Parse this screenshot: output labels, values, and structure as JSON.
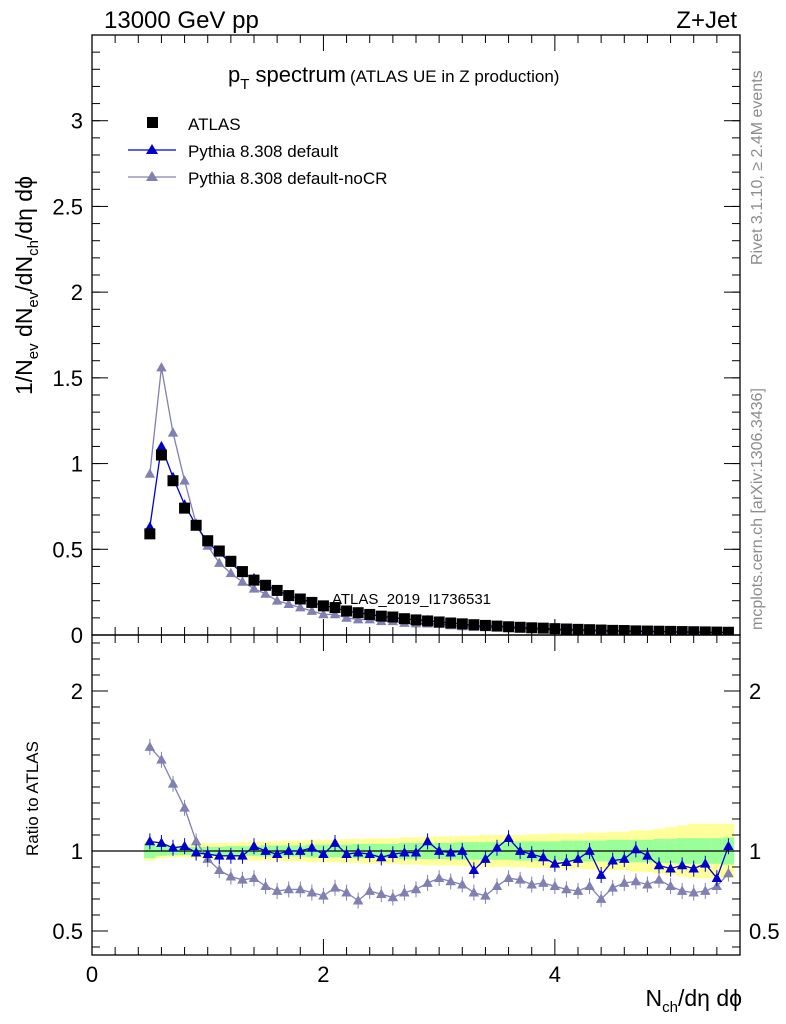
{
  "header": {
    "left": "13000 GeV pp",
    "right": "Z+Jet"
  },
  "plot_title": {
    "main": "p",
    "main_sub": "T",
    "main_rest": " spectrum",
    "suffix": "(ATLAS UE in Z production)"
  },
  "side_labels": {
    "rivet": "Rivet 3.1.10, ≥ 2.4M events",
    "mcplots": "mcplots.cern.ch [arXiv:1306.3436]"
  },
  "analysis_label": "ATLAS_2019_I1736531",
  "y_label_main": {
    "p1": "1/N",
    "s1": "ev",
    "p2": " dN",
    "s2": "ev",
    "p3": "/dN",
    "s3": "ch",
    "p4": "/dη dϕ"
  },
  "y_label_ratio": "Ratio to ATLAS",
  "x_label": {
    "p1": "N",
    "s1": "ch",
    "p2": "/dη dϕ"
  },
  "colors": {
    "data": "#000000",
    "pythia_default": "#0000cc",
    "pythia_nocr": "#8080b3",
    "band_inner": "#99ff99",
    "band_outer": "#ffff99"
  },
  "chart_data": [
    {
      "type": "scatter",
      "panel": "main",
      "xlim": [
        0,
        5.6
      ],
      "ylim": [
        0,
        3.5
      ],
      "x_ticks": [
        0,
        2,
        4
      ],
      "y_ticks": [
        0,
        0.5,
        1,
        1.5,
        2,
        2.5,
        3
      ],
      "y_tick_labels": [
        "0",
        "0.5",
        "1",
        "1.5",
        "2",
        "2.5",
        "3"
      ],
      "x": [
        0.5,
        0.6,
        0.7,
        0.8,
        0.9,
        1.0,
        1.1,
        1.2,
        1.3,
        1.4,
        1.5,
        1.6,
        1.7,
        1.8,
        1.9,
        2.0,
        2.1,
        2.2,
        2.3,
        2.4,
        2.5,
        2.6,
        2.7,
        2.8,
        2.9,
        3.0,
        3.1,
        3.2,
        3.3,
        3.4,
        3.5,
        3.6,
        3.7,
        3.8,
        3.9,
        4.0,
        4.1,
        4.2,
        4.3,
        4.4,
        4.5,
        4.6,
        4.7,
        4.8,
        4.9,
        5.0,
        5.1,
        5.2,
        5.3,
        5.4,
        5.5
      ],
      "series": [
        {
          "name": "ATLAS",
          "marker": "square",
          "values": [
            0.59,
            1.05,
            0.9,
            0.74,
            0.64,
            0.55,
            0.49,
            0.43,
            0.37,
            0.32,
            0.29,
            0.26,
            0.23,
            0.21,
            0.19,
            0.17,
            0.16,
            0.14,
            0.13,
            0.12,
            0.11,
            0.105,
            0.095,
            0.088,
            0.082,
            0.076,
            0.07,
            0.065,
            0.06,
            0.056,
            0.052,
            0.048,
            0.045,
            0.042,
            0.04,
            0.037,
            0.035,
            0.033,
            0.031,
            0.029,
            0.027,
            0.026,
            0.024,
            0.023,
            0.022,
            0.021,
            0.02,
            0.019,
            0.018,
            0.017,
            0.016
          ]
        },
        {
          "name": "Pythia 8.308 default",
          "marker": "triangle",
          "values": [
            0.63,
            1.1,
            0.92,
            0.76,
            0.64,
            0.54,
            0.48,
            0.42,
            0.36,
            0.33,
            0.29,
            0.26,
            0.23,
            0.21,
            0.19,
            0.17,
            0.16,
            0.14,
            0.13,
            0.12,
            0.11,
            0.1,
            0.094,
            0.088,
            0.085,
            0.076,
            0.07,
            0.065,
            0.054,
            0.053,
            0.053,
            0.048,
            0.043,
            0.041,
            0.038,
            0.034,
            0.032,
            0.031,
            0.029,
            0.026,
            0.025,
            0.024,
            0.023,
            0.022,
            0.021,
            0.019,
            0.018,
            0.017,
            0.016,
            0.015,
            0.017
          ]
        },
        {
          "name": "Pythia 8.308 default-noCR",
          "marker": "triangle",
          "values": [
            0.94,
            1.56,
            1.18,
            0.9,
            0.65,
            0.52,
            0.42,
            0.36,
            0.31,
            0.27,
            0.24,
            0.2,
            0.18,
            0.16,
            0.14,
            0.12,
            0.12,
            0.1,
            0.09,
            0.09,
            0.08,
            0.08,
            0.07,
            0.067,
            0.066,
            0.063,
            0.056,
            0.05,
            0.046,
            0.044,
            0.043,
            0.04,
            0.037,
            0.034,
            0.031,
            0.029,
            0.027,
            0.026,
            0.024,
            0.022,
            0.021,
            0.02,
            0.019,
            0.018,
            0.018,
            0.016,
            0.015,
            0.014,
            0.014,
            0.013,
            0.014
          ]
        }
      ]
    },
    {
      "type": "line",
      "panel": "ratio",
      "xlim": [
        0,
        5.6
      ],
      "ylim": [
        0.35,
        2.35
      ],
      "x_ticks": [
        0,
        2,
        4
      ],
      "x_tick_labels": [
        "0",
        "2",
        "4"
      ],
      "y_ticks": [
        0.5,
        1,
        2
      ],
      "y_tick_labels": [
        "0.5",
        "1",
        "2"
      ],
      "x": [
        0.5,
        0.6,
        0.7,
        0.8,
        0.9,
        1.0,
        1.1,
        1.2,
        1.3,
        1.4,
        1.5,
        1.6,
        1.7,
        1.8,
        1.9,
        2.0,
        2.1,
        2.2,
        2.3,
        2.4,
        2.5,
        2.6,
        2.7,
        2.8,
        2.9,
        3.0,
        3.1,
        3.2,
        3.3,
        3.4,
        3.5,
        3.6,
        3.7,
        3.8,
        3.9,
        4.0,
        4.1,
        4.2,
        4.3,
        4.4,
        4.5,
        4.6,
        4.7,
        4.8,
        4.9,
        5.0,
        5.1,
        5.2,
        5.3,
        5.4,
        5.5
      ],
      "reference_line": 1,
      "series": [
        {
          "name": "Pythia 8.308 default",
          "values": [
            1.06,
            1.05,
            1.02,
            1.03,
            0.99,
            0.98,
            0.97,
            0.97,
            0.97,
            1.03,
            1.0,
            0.98,
            1.0,
            1.0,
            1.02,
            0.98,
            1.05,
            0.98,
            0.99,
            0.98,
            0.96,
            0.98,
            0.99,
            0.99,
            1.06,
            1.0,
            0.99,
            1.0,
            0.88,
            0.95,
            1.02,
            1.08,
            1.0,
            0.98,
            0.96,
            0.92,
            0.93,
            0.95,
            1.0,
            0.85,
            0.94,
            0.95,
            1.01,
            0.97,
            0.91,
            0.89,
            0.91,
            0.89,
            0.92,
            0.83,
            1.03
          ]
        },
        {
          "name": "Pythia 8.308 default-noCR",
          "values": [
            1.65,
            1.57,
            1.42,
            1.27,
            1.06,
            0.95,
            0.88,
            0.84,
            0.82,
            0.83,
            0.78,
            0.75,
            0.76,
            0.76,
            0.74,
            0.72,
            0.77,
            0.74,
            0.69,
            0.75,
            0.73,
            0.71,
            0.74,
            0.76,
            0.8,
            0.83,
            0.81,
            0.79,
            0.74,
            0.72,
            0.78,
            0.83,
            0.82,
            0.79,
            0.8,
            0.78,
            0.76,
            0.75,
            0.78,
            0.7,
            0.77,
            0.8,
            0.81,
            0.79,
            0.82,
            0.78,
            0.75,
            0.74,
            0.75,
            0.78,
            0.86
          ]
        }
      ],
      "band_inner": [
        0.045,
        0.03,
        0.025,
        0.025,
        0.025,
        0.025,
        0.025,
        0.03,
        0.03,
        0.03,
        0.035,
        0.035,
        0.035,
        0.035,
        0.04,
        0.04,
        0.04,
        0.04,
        0.045,
        0.045,
        0.045,
        0.045,
        0.05,
        0.05,
        0.05,
        0.05,
        0.05,
        0.055,
        0.055,
        0.055,
        0.055,
        0.055,
        0.06,
        0.06,
        0.06,
        0.06,
        0.065,
        0.065,
        0.065,
        0.065,
        0.07,
        0.07,
        0.07,
        0.07,
        0.075,
        0.075,
        0.08,
        0.08,
        0.08,
        0.08,
        0.085
      ],
      "band_outer": [
        0.06,
        0.045,
        0.04,
        0.04,
        0.045,
        0.05,
        0.05,
        0.05,
        0.055,
        0.06,
        0.06,
        0.06,
        0.065,
        0.065,
        0.07,
        0.07,
        0.07,
        0.075,
        0.075,
        0.08,
        0.08,
        0.08,
        0.085,
        0.085,
        0.09,
        0.09,
        0.09,
        0.095,
        0.095,
        0.1,
        0.1,
        0.1,
        0.1,
        0.105,
        0.105,
        0.11,
        0.11,
        0.11,
        0.115,
        0.115,
        0.12,
        0.12,
        0.13,
        0.13,
        0.14,
        0.15,
        0.16,
        0.17,
        0.17,
        0.17,
        0.17
      ]
    }
  ]
}
